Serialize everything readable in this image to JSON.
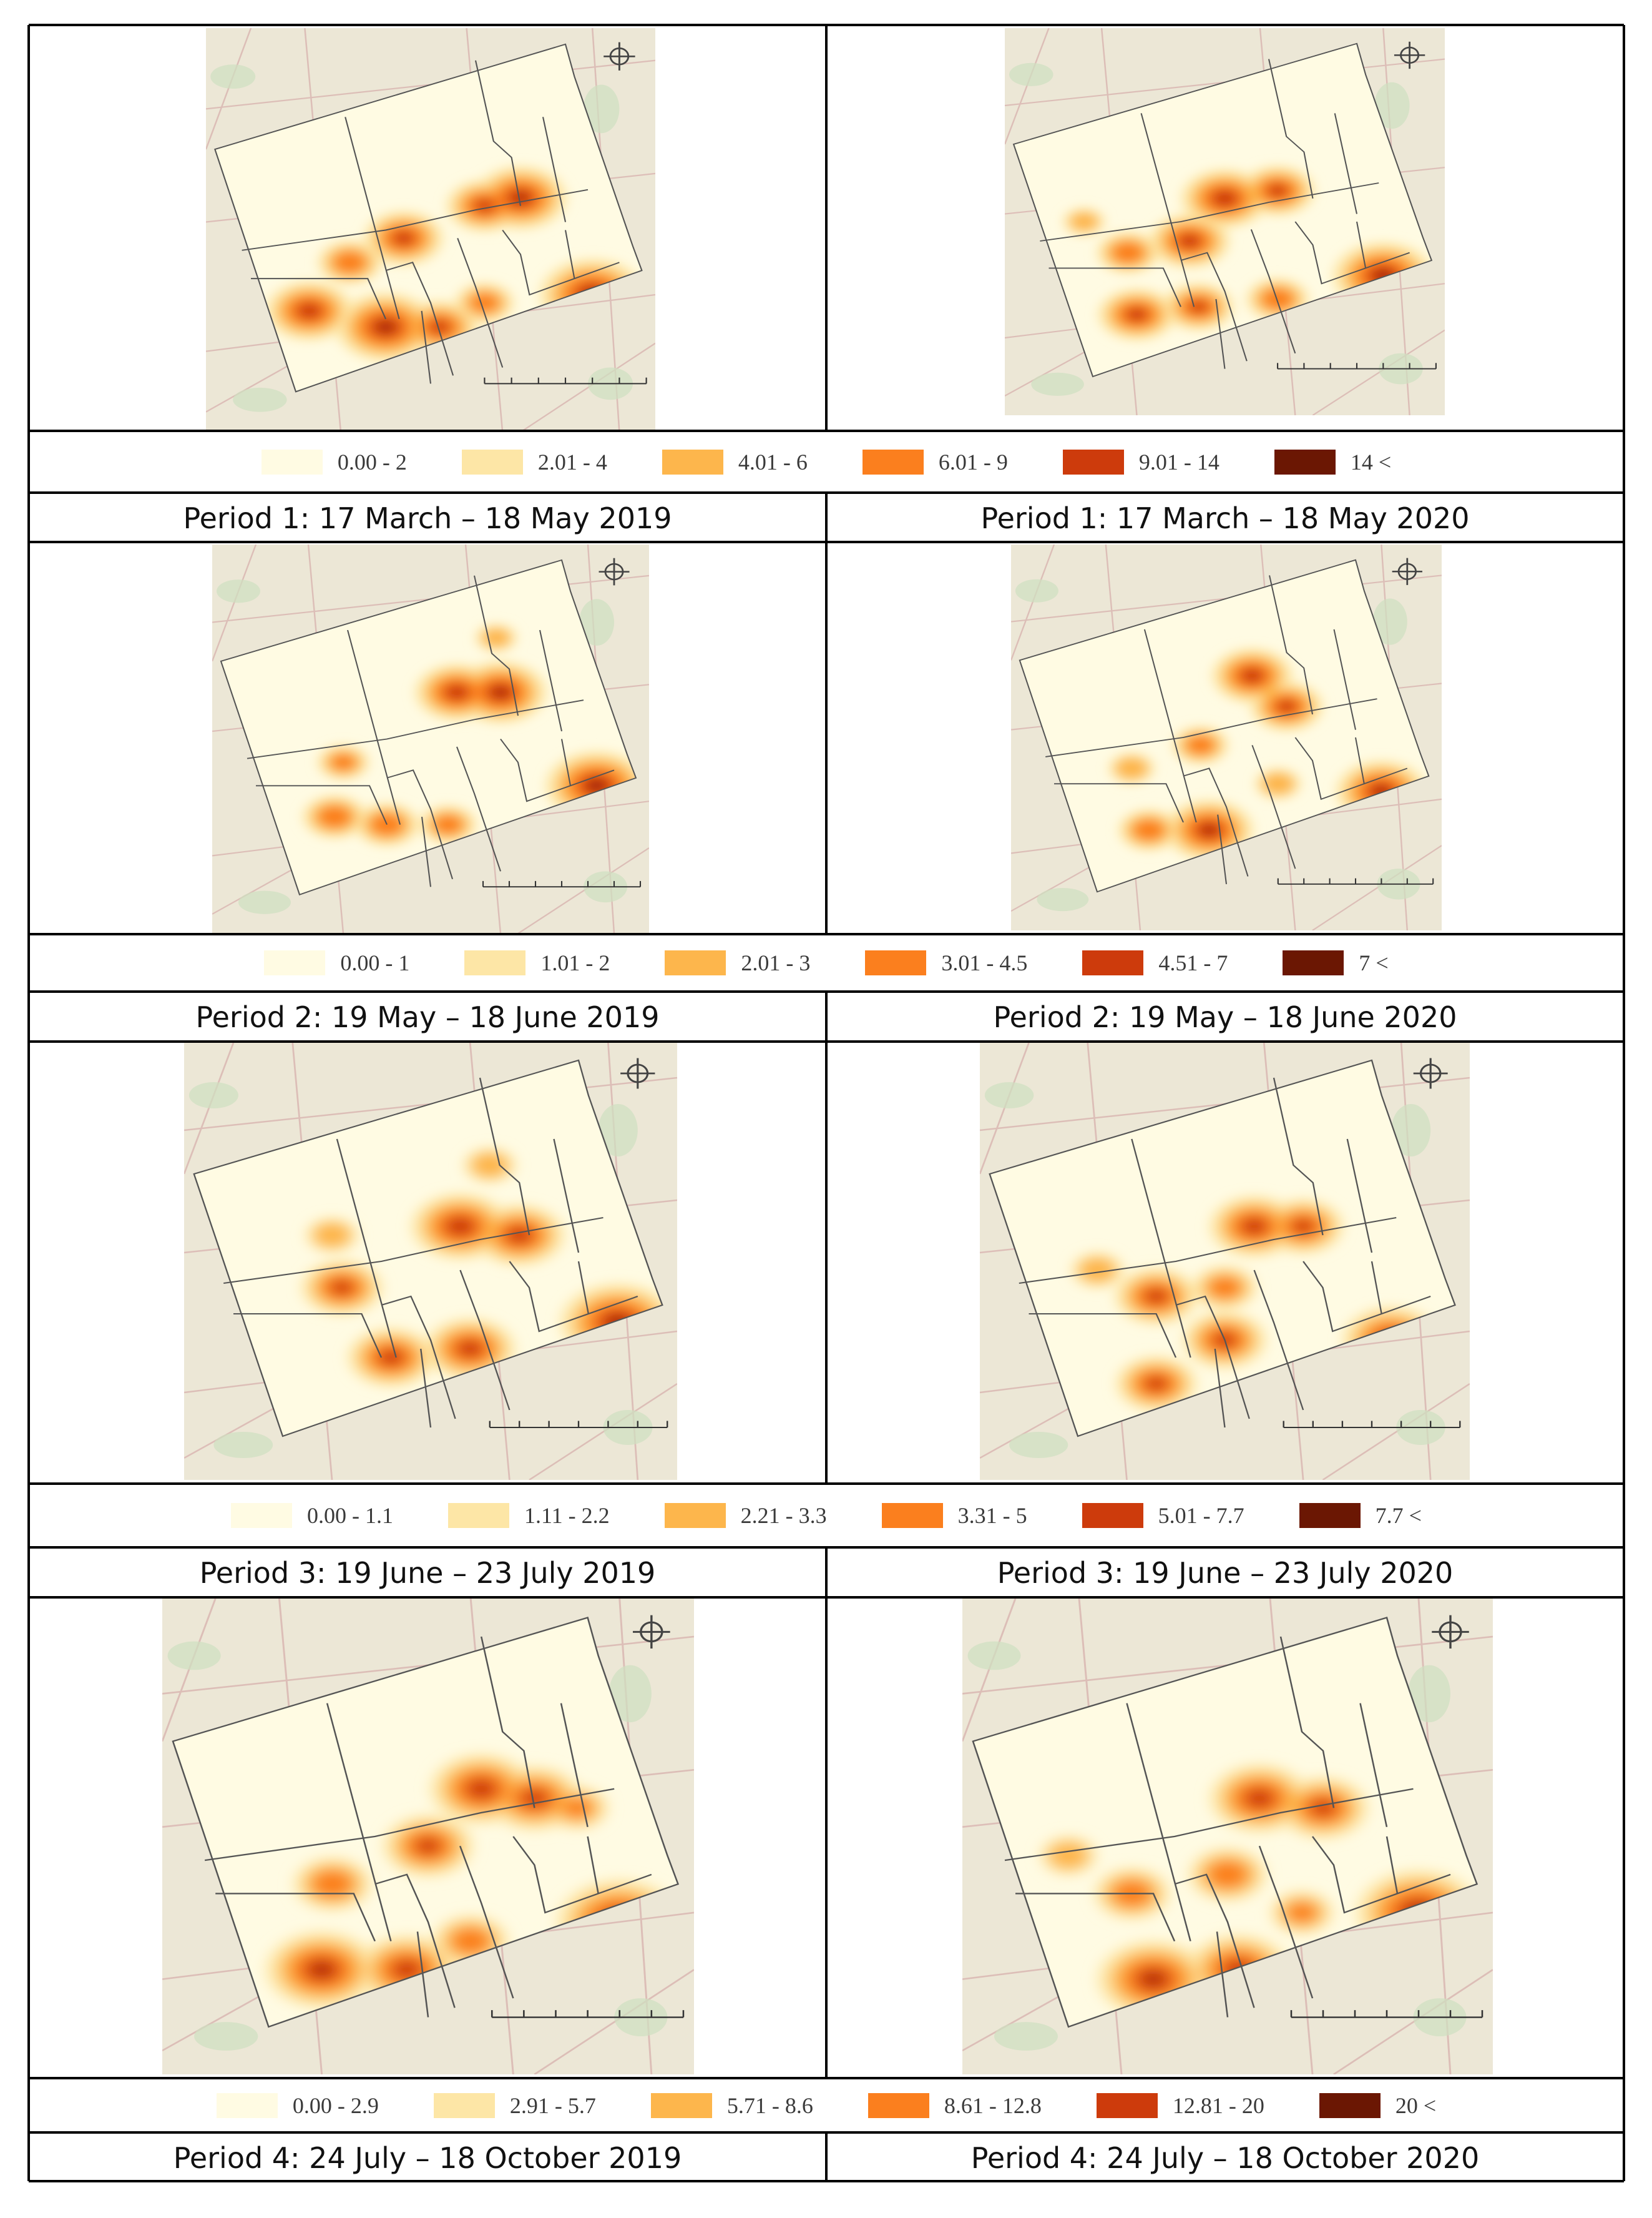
{
  "palette": [
    "#fffbe3",
    "#fde6a6",
    "#fdb64c",
    "#fb7f1e",
    "#cd3b0c",
    "#6b1703"
  ],
  "periods": [
    {
      "legend": [
        "0.00 - 2",
        "2.01 - 4",
        "4.01 - 6",
        "6.01 - 9",
        "9.01 - 14",
        "14 <"
      ],
      "maps": [
        {
          "caption": "Period 1: 17 March – 18 May 2019",
          "hotspots": [
            [
              0.62,
              0.44,
              0.72
            ],
            [
              0.44,
              0.52,
              0.75
            ],
            [
              0.7,
              0.42,
              0.88
            ],
            [
              0.4,
              0.74,
              0.95
            ],
            [
              0.23,
              0.7,
              0.82
            ],
            [
              0.52,
              0.74,
              0.72
            ],
            [
              0.86,
              0.66,
              1.0
            ],
            [
              0.62,
              0.68,
              0.55
            ],
            [
              0.32,
              0.58,
              0.6
            ]
          ]
        },
        {
          "caption": "Period 1: 17 March – 18 May 2020",
          "hotspots": [
            [
              0.5,
              0.44,
              0.85
            ],
            [
              0.62,
              0.42,
              0.72
            ],
            [
              0.42,
              0.55,
              0.78
            ],
            [
              0.28,
              0.58,
              0.6
            ],
            [
              0.3,
              0.74,
              0.75
            ],
            [
              0.44,
              0.72,
              0.68
            ],
            [
              0.62,
              0.7,
              0.6
            ],
            [
              0.86,
              0.64,
              0.98
            ],
            [
              0.18,
              0.5,
              0.4
            ]
          ]
        }
      ]
    },
    {
      "legend": [
        "0.00 - 1",
        "1.01 - 2",
        "2.01 - 3",
        "3.01 - 4.5",
        "4.51 - 7",
        "7 <"
      ],
      "maps": [
        {
          "caption": "Period 2: 19 May – 18 June 2019",
          "hotspots": [
            [
              0.56,
              0.38,
              0.82
            ],
            [
              0.66,
              0.38,
              0.9
            ],
            [
              0.28,
              0.7,
              0.62
            ],
            [
              0.4,
              0.72,
              0.62
            ],
            [
              0.54,
              0.72,
              0.55
            ],
            [
              0.88,
              0.62,
              1.0
            ],
            [
              0.3,
              0.56,
              0.5
            ],
            [
              0.65,
              0.24,
              0.4
            ]
          ]
        },
        {
          "caption": "Period 2: 19 May – 18 June 2020",
          "hotspots": [
            [
              0.56,
              0.34,
              0.8
            ],
            [
              0.64,
              0.42,
              0.72
            ],
            [
              0.44,
              0.52,
              0.55
            ],
            [
              0.46,
              0.74,
              0.88
            ],
            [
              0.32,
              0.74,
              0.6
            ],
            [
              0.86,
              0.64,
              0.9
            ],
            [
              0.28,
              0.58,
              0.45
            ],
            [
              0.62,
              0.62,
              0.45
            ]
          ]
        }
      ]
    },
    {
      "legend": [
        "0.00 - 1.1",
        "1.11 - 2.2",
        "2.21 - 3.3",
        "3.31 - 5",
        "5.01 - 7.7",
        "7.7 <"
      ],
      "maps": [
        {
          "caption": "Period 3: 19 June – 23 July 2019",
          "hotspots": [
            [
              0.56,
              0.42,
              0.85
            ],
            [
              0.68,
              0.44,
              0.78
            ],
            [
              0.32,
              0.56,
              0.7
            ],
            [
              0.42,
              0.72,
              0.75
            ],
            [
              0.58,
              0.7,
              0.78
            ],
            [
              0.3,
              0.44,
              0.45
            ],
            [
              0.88,
              0.64,
              1.0
            ],
            [
              0.62,
              0.28,
              0.45
            ]
          ]
        },
        {
          "caption": "Period 3: 19 June – 23 July 2020",
          "hotspots": [
            [
              0.56,
              0.42,
              0.78
            ],
            [
              0.66,
              0.42,
              0.7
            ],
            [
              0.36,
              0.58,
              0.72
            ],
            [
              0.5,
              0.68,
              0.72
            ],
            [
              0.36,
              0.78,
              0.7
            ],
            [
              0.5,
              0.56,
              0.55
            ],
            [
              0.84,
              0.68,
              0.85
            ],
            [
              0.24,
              0.52,
              0.45
            ]
          ]
        }
      ]
    },
    {
      "legend": [
        "0.00 - 2.9",
        "2.91 - 5.7",
        "5.71 - 8.6",
        "8.61 - 12.8",
        "12.81 - 20",
        "20 <"
      ],
      "maps": [
        {
          "caption": "Period 4: 24 July – 18 October 2019",
          "hotspots": [
            [
              0.6,
              0.4,
              0.82
            ],
            [
              0.7,
              0.42,
              0.75
            ],
            [
              0.5,
              0.52,
              0.72
            ],
            [
              0.32,
              0.6,
              0.62
            ],
            [
              0.3,
              0.78,
              0.9
            ],
            [
              0.46,
              0.78,
              0.8
            ],
            [
              0.58,
              0.72,
              0.6
            ],
            [
              0.86,
              0.68,
              1.0
            ],
            [
              0.78,
              0.44,
              0.5
            ]
          ]
        },
        {
          "caption": "Period 4: 24 July – 18 October 2020",
          "hotspots": [
            [
              0.56,
              0.42,
              0.8
            ],
            [
              0.68,
              0.44,
              0.72
            ],
            [
              0.5,
              0.58,
              0.62
            ],
            [
              0.32,
              0.62,
              0.6
            ],
            [
              0.36,
              0.8,
              0.9
            ],
            [
              0.52,
              0.78,
              0.82
            ],
            [
              0.64,
              0.66,
              0.5
            ],
            [
              0.86,
              0.66,
              1.0
            ],
            [
              0.2,
              0.54,
              0.45
            ]
          ]
        }
      ]
    }
  ]
}
